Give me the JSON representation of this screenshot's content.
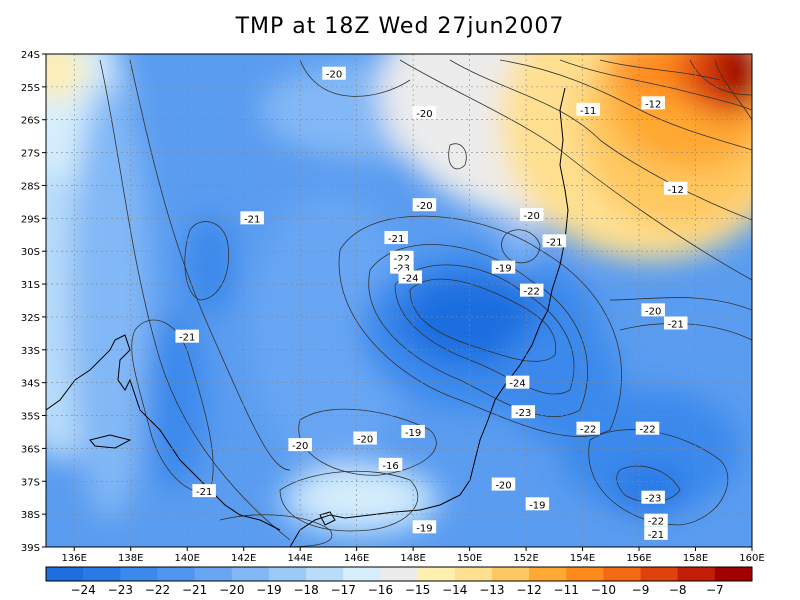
{
  "title": "TMP at 18Z Wed 27jun2007",
  "lat_labels": [
    "24S",
    "25S",
    "26S",
    "27S",
    "28S",
    "29S",
    "30S",
    "31S",
    "32S",
    "33S",
    "34S",
    "35S",
    "36S",
    "37S",
    "38S",
    "39S"
  ],
  "lon_labels": [
    "136E",
    "138E",
    "140E",
    "142E",
    "144E",
    "146E",
    "148E",
    "150E",
    "152E",
    "154E",
    "156E",
    "158E",
    "160E"
  ],
  "contour_labels": [
    {
      "text": "-20",
      "lon": 145.2,
      "lat": -24.6
    },
    {
      "text": "-20",
      "lon": 148.4,
      "lat": -25.8
    },
    {
      "text": "-11",
      "lon": 154.2,
      "lat": -25.7
    },
    {
      "text": "-12",
      "lon": 156.5,
      "lat": -25.5
    },
    {
      "text": "-12",
      "lon": 157.3,
      "lat": -28.1
    },
    {
      "text": "-20",
      "lon": 148.4,
      "lat": -28.6
    },
    {
      "text": "-20",
      "lon": 152.2,
      "lat": -28.9
    },
    {
      "text": "-21",
      "lon": 142.3,
      "lat": -29.0
    },
    {
      "text": "-21",
      "lon": 147.4,
      "lat": -29.6
    },
    {
      "text": "-21",
      "lon": 153.0,
      "lat": -29.7
    },
    {
      "text": "-22",
      "lon": 147.6,
      "lat": -30.2
    },
    {
      "text": "-23",
      "lon": 147.6,
      "lat": -30.5
    },
    {
      "text": "-24",
      "lon": 147.9,
      "lat": -30.8
    },
    {
      "text": "-19",
      "lon": 151.2,
      "lat": -30.5
    },
    {
      "text": "-22",
      "lon": 152.2,
      "lat": -31.2
    },
    {
      "text": "-20",
      "lon": 156.5,
      "lat": -31.8
    },
    {
      "text": "-21",
      "lon": 157.3,
      "lat": -32.2
    },
    {
      "text": "-21",
      "lon": 140.0,
      "lat": -32.6
    },
    {
      "text": "-24",
      "lon": 151.7,
      "lat": -34.0
    },
    {
      "text": "-23",
      "lon": 151.9,
      "lat": -34.9
    },
    {
      "text": "-22",
      "lon": 154.2,
      "lat": -35.4
    },
    {
      "text": "-22",
      "lon": 156.3,
      "lat": -35.4
    },
    {
      "text": "-20",
      "lon": 144.0,
      "lat": -35.9
    },
    {
      "text": "-20",
      "lon": 146.3,
      "lat": -35.7
    },
    {
      "text": "-19",
      "lon": 148.0,
      "lat": -35.5
    },
    {
      "text": "-16",
      "lon": 147.2,
      "lat": -36.5
    },
    {
      "text": "-20",
      "lon": 151.2,
      "lat": -37.1
    },
    {
      "text": "-21",
      "lon": 140.6,
      "lat": -37.3
    },
    {
      "text": "-23",
      "lon": 156.5,
      "lat": -37.5
    },
    {
      "text": "-19",
      "lon": 152.4,
      "lat": -37.7
    },
    {
      "text": "-22",
      "lon": 156.6,
      "lat": -38.2
    },
    {
      "text": "-21",
      "lon": 156.6,
      "lat": -38.6
    },
    {
      "text": "-19",
      "lon": 148.4,
      "lat": -38.4
    }
  ],
  "colorbar": {
    "labels": [
      "-24",
      "-23",
      "-22",
      "-21",
      "-20",
      "-19",
      "-18",
      "-17",
      "-16",
      "-15",
      "-14",
      "-13",
      "-12",
      "-11",
      "-10",
      "-9",
      "-8",
      "-7"
    ],
    "colors": [
      "#1e6ee0",
      "#2a7ae6",
      "#3b89ec",
      "#5096f0",
      "#68a6f4",
      "#82b8f6",
      "#9ccaf8",
      "#b8dcfa",
      "#d6eefc",
      "#ececec",
      "#fff0b0",
      "#ffe090",
      "#ffc860",
      "#ffa832",
      "#ff8a1c",
      "#f46a14",
      "#e0420e",
      "#c41e08",
      "#a00000"
    ]
  },
  "colors": {
    "background": "#ffffff",
    "map_border": "#000000",
    "contour": "#333333",
    "coast": "#000000"
  }
}
